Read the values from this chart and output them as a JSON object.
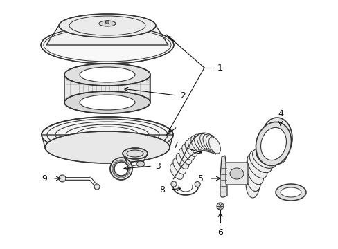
{
  "background_color": "#ffffff",
  "line_color": "#333333",
  "figsize": [
    4.89,
    3.6
  ],
  "dpi": 100,
  "label_fontsize": 8.5
}
